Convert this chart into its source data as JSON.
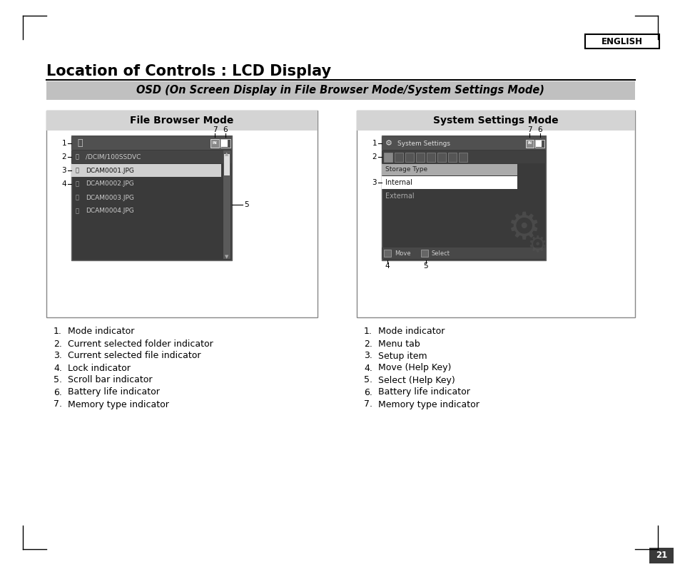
{
  "title": "Location of Controls : LCD Display",
  "english_label": "ENGLISH",
  "subtitle": "OSD (On Screen Display in File Browser Mode/System Settings Mode)",
  "left_panel_title": "File Browser Mode",
  "right_panel_title": "System Settings Mode",
  "page_number": "21",
  "left_list": [
    [
      "1.",
      "Mode indicator"
    ],
    [
      "2.",
      "Current selected folder indicator"
    ],
    [
      "3.",
      "Current selected file indicator"
    ],
    [
      "4.",
      "Lock indicator"
    ],
    [
      "5.",
      "Scroll bar indicator"
    ],
    [
      "6.",
      "Battery life indicator"
    ],
    [
      "7.",
      "Memory type indicator"
    ]
  ],
  "right_list": [
    [
      "1.",
      "Mode indicator"
    ],
    [
      "2.",
      "Menu tab"
    ],
    [
      "3.",
      "Setup item"
    ],
    [
      "4.",
      "Move (Help Key)"
    ],
    [
      "5.",
      "Select (Help Key)"
    ],
    [
      "6.",
      "Battery life indicator"
    ],
    [
      "7.",
      "Memory type indicator"
    ]
  ],
  "bg_color": "#ffffff",
  "subtitle_bg": "#c0c0c0",
  "panel_title_bg": "#d4d4d4",
  "screen_bg": "#3a3a3a",
  "screen_dark": "#2e2e2e",
  "screen_mid": "#4a4a4a",
  "screen_light_row": "#c8c8c8",
  "screen_selected_white": "#e8e8e8"
}
